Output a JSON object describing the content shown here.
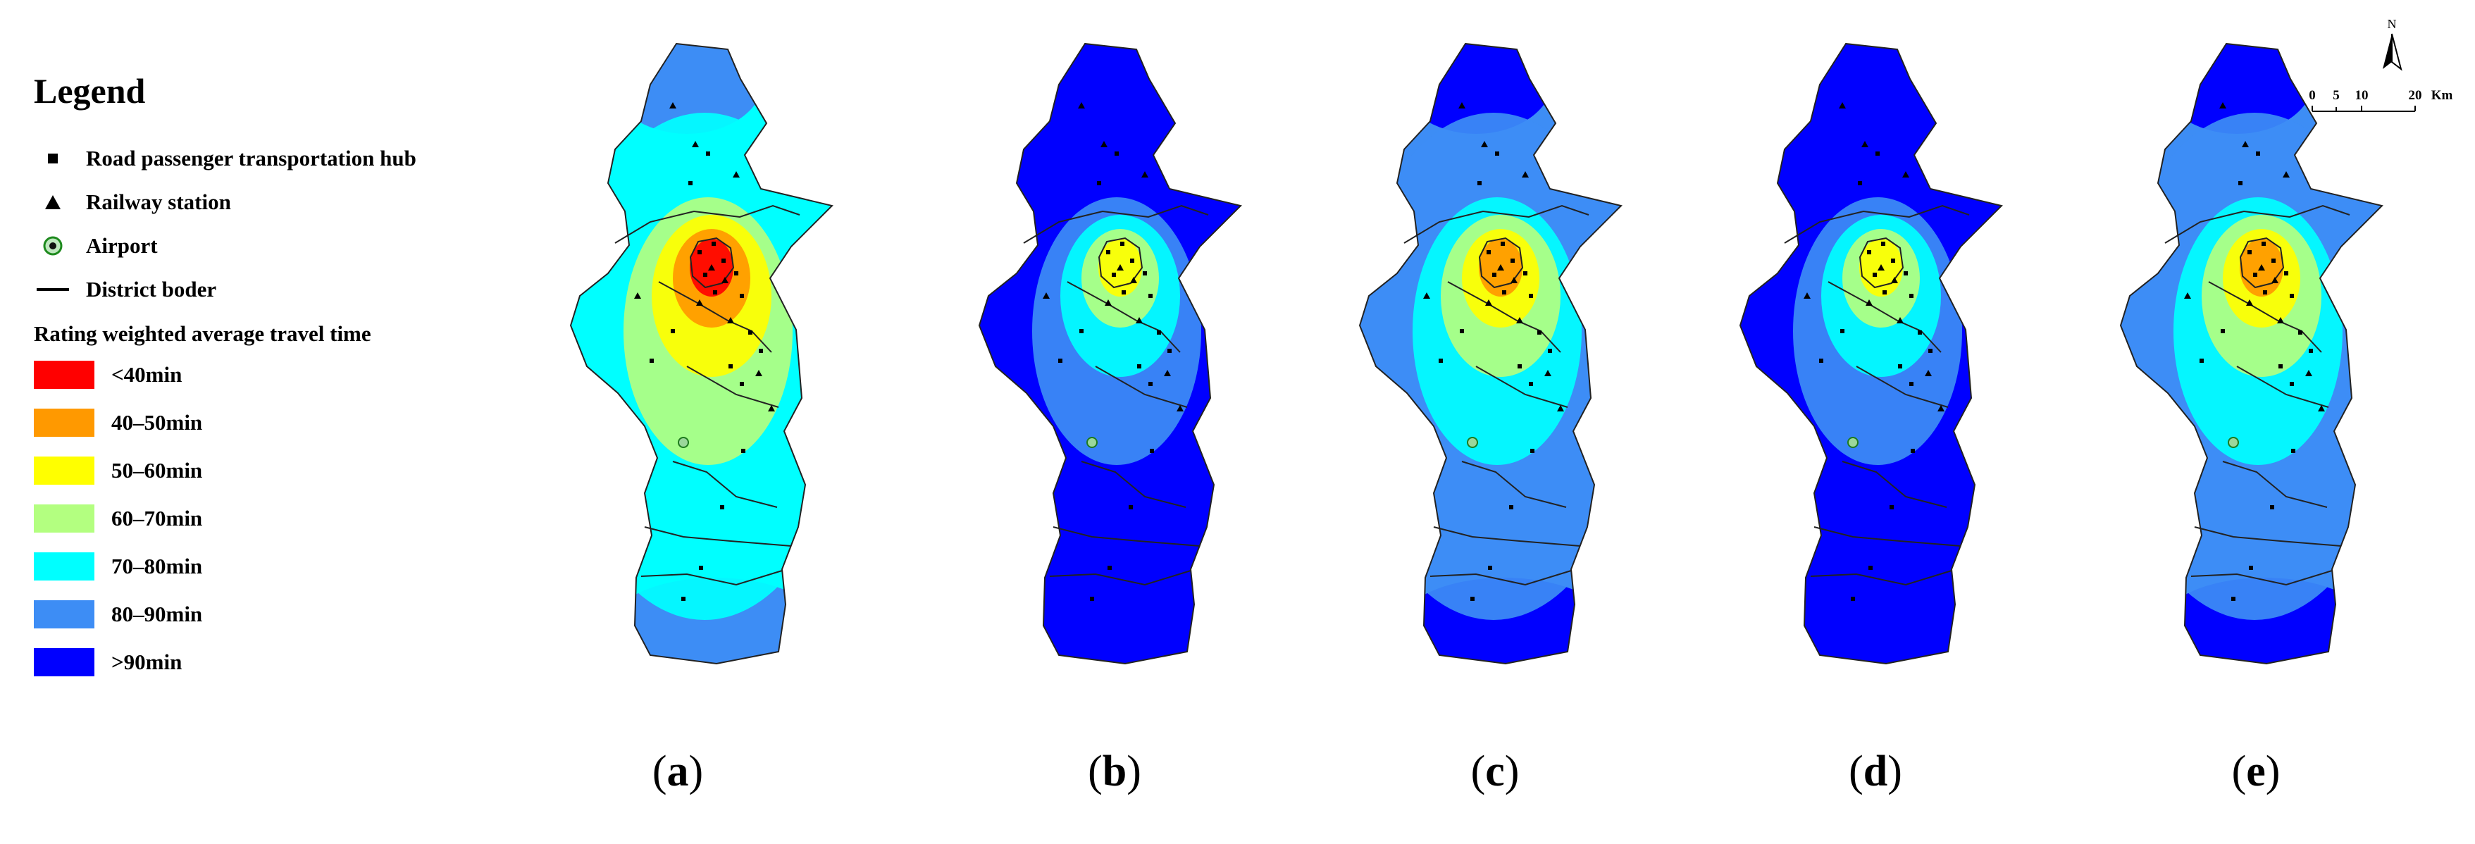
{
  "legend": {
    "title": "Legend",
    "symbols": [
      {
        "label": "Road passenger transportation hub",
        "icon": "square-marker-icon"
      },
      {
        "label": "Railway station",
        "icon": "triangle-marker-icon"
      },
      {
        "label": "Airport",
        "icon": "airport-marker-icon"
      },
      {
        "label": "District boder",
        "icon": "line-icon"
      }
    ],
    "rating_title": "Rating weighted average travel time",
    "classes": [
      {
        "label": "<40min",
        "color": "#ff0000"
      },
      {
        "label": "40–50min",
        "color": "#ff9900"
      },
      {
        "label": "50–60min",
        "color": "#ffff00"
      },
      {
        "label": "60–70min",
        "color": "#b3ff80"
      },
      {
        "label": "70–80min",
        "color": "#00ffff"
      },
      {
        "label": "80–90min",
        "color": "#3d8df5"
      },
      {
        "label": ">90min",
        "color": "#0000ff"
      }
    ]
  },
  "panels": [
    {
      "label": "a",
      "core_class": 0
    },
    {
      "label": "b",
      "core_class": 2
    },
    {
      "label": "c",
      "core_class": 1
    },
    {
      "label": "d",
      "core_class": 2
    },
    {
      "label": "e",
      "core_class": 1
    }
  ],
  "scale": {
    "north": "N",
    "ticks": [
      "0",
      "5",
      "10",
      "20"
    ],
    "unit": "Km"
  }
}
